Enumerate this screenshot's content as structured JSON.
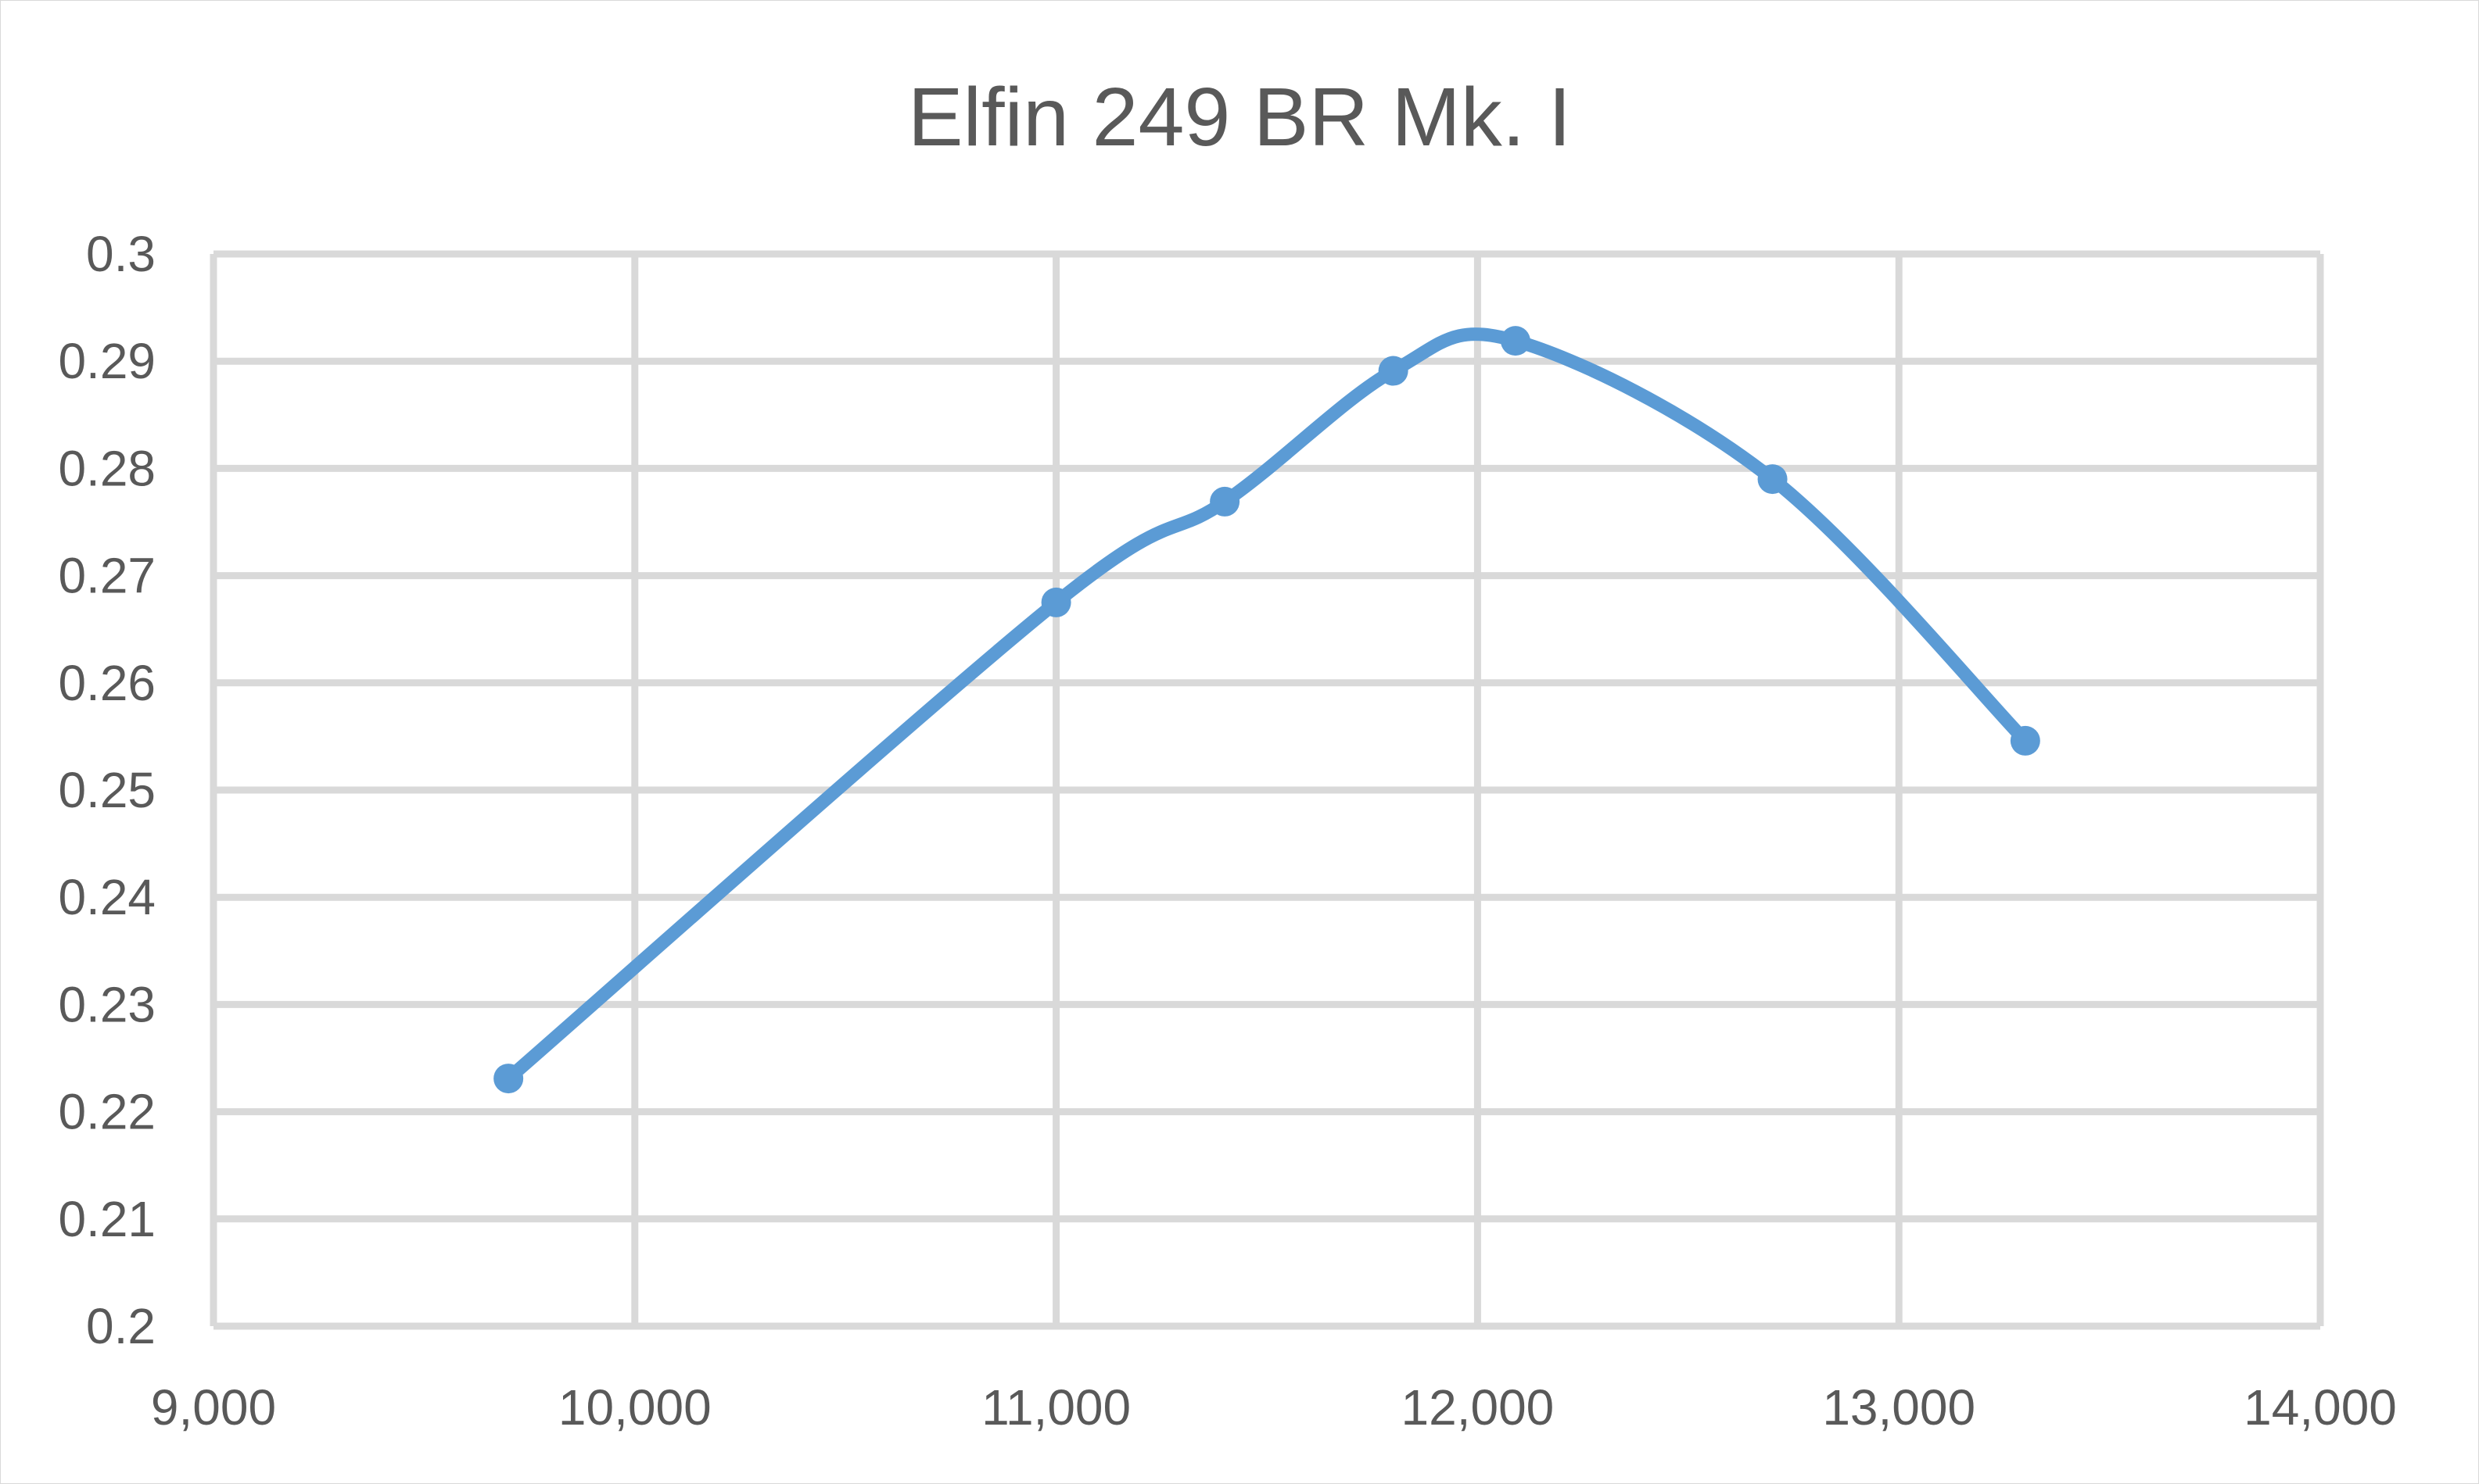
{
  "chart_data": {
    "type": "line",
    "title": "Elfin 249 BR Mk. I",
    "xlabel": "",
    "ylabel": "",
    "xlim": [
      9000,
      14000
    ],
    "ylim": [
      0.2,
      0.3
    ],
    "x_ticks": [
      9000,
      10000,
      11000,
      12000,
      13000,
      14000
    ],
    "x_tick_labels": [
      "9,000",
      "10,000",
      "11,000",
      "12,000",
      "13,000",
      "14,000"
    ],
    "y_ticks": [
      0.2,
      0.21,
      0.22,
      0.23,
      0.24,
      0.25,
      0.26,
      0.27,
      0.28,
      0.29,
      0.3
    ],
    "y_tick_labels": [
      "0.2",
      "0.21",
      "0.22",
      "0.23",
      "0.24",
      "0.25",
      "0.26",
      "0.27",
      "0.28",
      "0.29",
      "0.3"
    ],
    "grid": true,
    "legend": "none",
    "series": [
      {
        "color": "#5b9bd5",
        "x": [
          9700,
          11000,
          11400,
          11800,
          12090,
          12700,
          13300
        ],
        "y": [
          0.2231,
          0.2675,
          0.2769,
          0.2891,
          0.2919,
          0.279,
          0.2546
        ],
        "smooth": true
      }
    ]
  }
}
